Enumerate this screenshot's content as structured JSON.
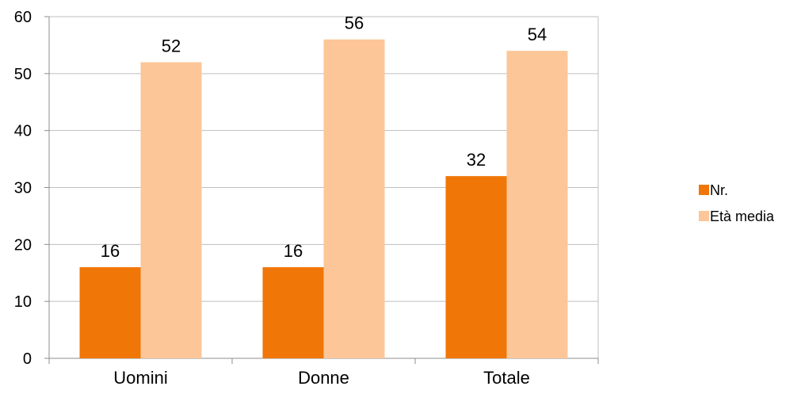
{
  "chart_data": {
    "type": "bar",
    "categories": [
      "Uomini",
      "Donne",
      "Totale"
    ],
    "series": [
      {
        "name": "Nr.",
        "values": [
          16,
          16,
          32
        ],
        "color": "#F07608"
      },
      {
        "name": "Età media",
        "values": [
          52,
          56,
          54
        ],
        "color": "#FCC698"
      }
    ],
    "yticks": [
      "0",
      "10",
      "20",
      "30",
      "40",
      "50",
      "60"
    ],
    "ylim": [
      0,
      60
    ],
    "grid": true,
    "legend_position": "right",
    "gridline_color": "#BFBFBF",
    "axis_color": "#8C8C8C"
  }
}
